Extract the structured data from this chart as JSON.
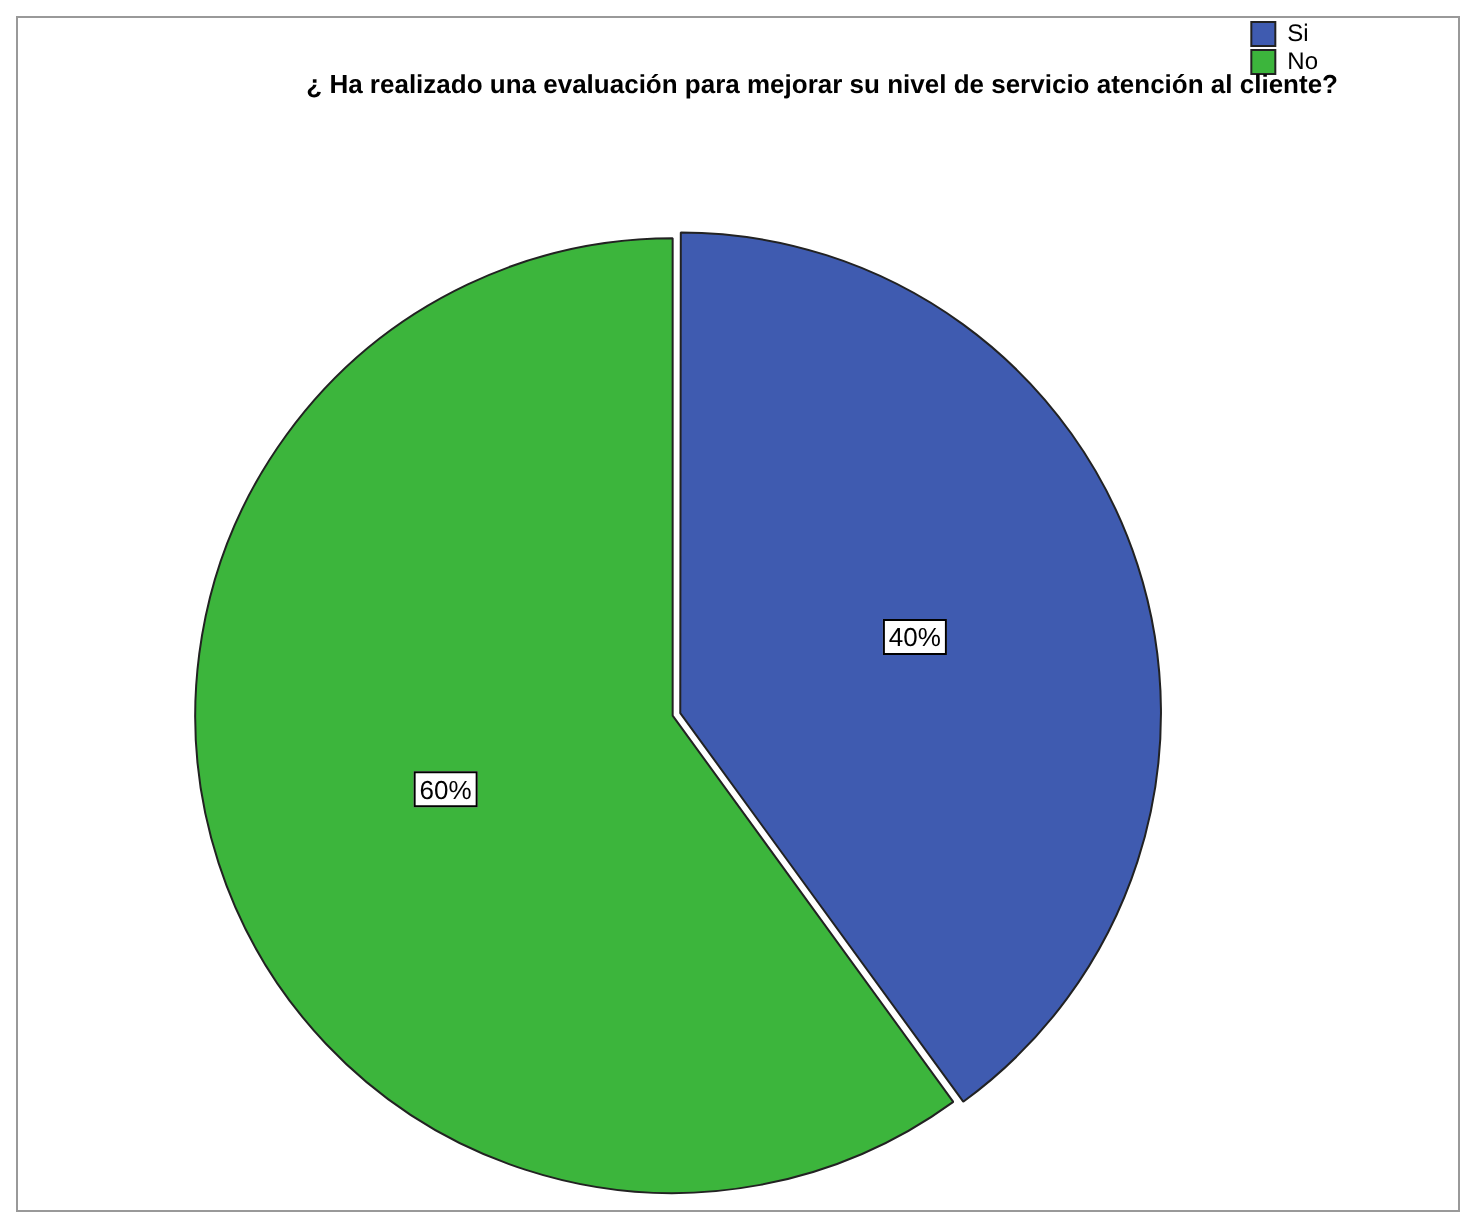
{
  "chart_data": {
    "type": "pie",
    "title": "¿ Ha realizado una evaluación para mejorar su nivel de servicio atención al cliente?",
    "categories": [
      "Si",
      "No"
    ],
    "values": [
      40,
      60
    ],
    "colors": [
      "#3f5bb0",
      "#3cb53c"
    ],
    "value_labels": [
      "40%",
      "60%"
    ],
    "legend": "top right"
  }
}
